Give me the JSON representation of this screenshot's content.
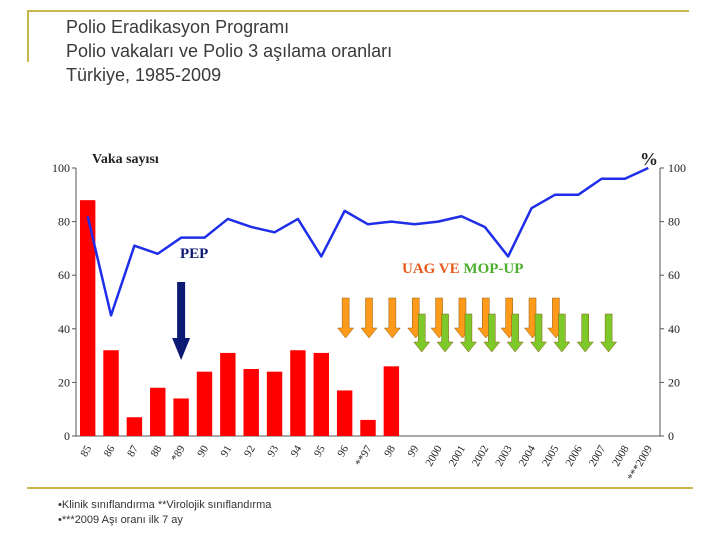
{
  "slide": {
    "title_lines": [
      "Polio Eradikasyon Programı",
      "Polio vakaları ve Polio 3 aşılama oranları",
      "Türkiye, 1985-2009"
    ],
    "footnotes": [
      "•Klinik sınıflandırma  **Virolojik sınıflandırma",
      "•***2009 Aşı oranı ilk 7 ay"
    ]
  },
  "chart_data": {
    "type": "bar",
    "ylabel": "Vaka sayısı",
    "y2label": "%",
    "ylim": [
      0,
      100
    ],
    "y2lim": [
      0,
      100
    ],
    "yticks": [
      "0",
      "20",
      "40",
      "60",
      "80",
      "100"
    ],
    "y2ticks": [
      "0",
      "20",
      "40",
      "60",
      "80",
      "100"
    ],
    "categories": [
      "85",
      "86",
      "87",
      "88",
      "*89",
      "90",
      "91",
      "92",
      "93",
      "94",
      "95",
      "96",
      "**97",
      "98",
      "99",
      "2000",
      "2001",
      "2002",
      "2003",
      "2004",
      "2005",
      "2006",
      "2007",
      "2008",
      "***2009"
    ],
    "series": [
      {
        "kind": "bar",
        "color": "#ff0000",
        "values": [
          88,
          32,
          7,
          18,
          14,
          24,
          31,
          25,
          24,
          32,
          31,
          17,
          6,
          26,
          0,
          0,
          0,
          0,
          0,
          0,
          0,
          0,
          0,
          0,
          0
        ]
      },
      {
        "kind": "line",
        "axis": "right",
        "color": "#1f2ee8",
        "values": [
          82,
          45,
          71,
          68,
          74,
          74,
          81,
          78,
          76,
          81,
          67,
          84,
          79,
          80,
          79,
          80,
          82,
          78,
          67,
          85,
          90,
          90,
          96,
          96,
          100
        ]
      }
    ],
    "annotations": [
      {
        "text": "PEP",
        "color": "#0d1a73",
        "arrow_at_category": "*89",
        "arrow_color": "#0d1a73"
      },
      {
        "text": "UAG VE ",
        "color": "#e85a1a"
      },
      {
        "text": "MOP-UP",
        "color": "#4caf2e"
      }
    ],
    "orange_arrow_categories": [
      "96",
      "**97",
      "98",
      "99",
      "2000",
      "2001",
      "2002",
      "2003",
      "2004",
      "2005"
    ],
    "green_arrow_categories": [
      "99",
      "2000",
      "2001",
      "2002",
      "2003",
      "2004",
      "2005",
      "2006",
      "2007"
    ],
    "orange_arrow_color": "#ff9a1a",
    "green_arrow_color": "#7dc92a"
  }
}
